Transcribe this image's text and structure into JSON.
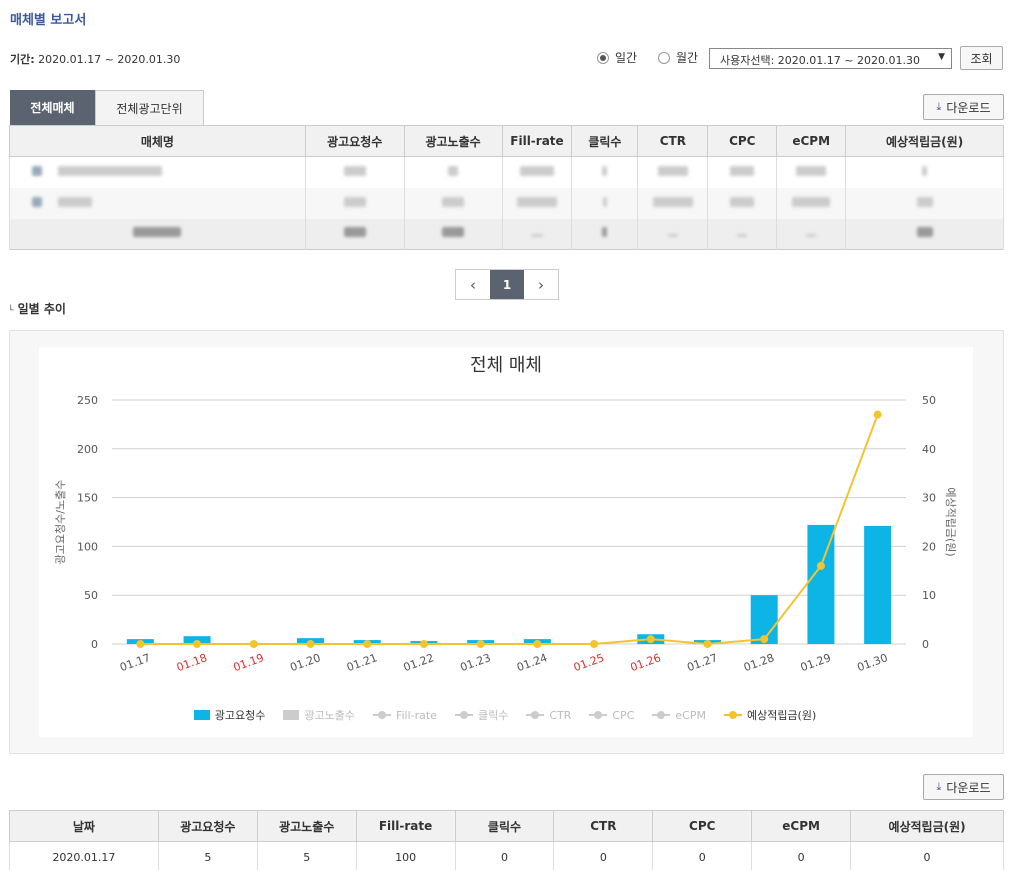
{
  "page": {
    "title": "매체별 보고서"
  },
  "period": {
    "label": "기간:",
    "value": "2020.01.17 ~ 2020.01.30"
  },
  "filter": {
    "daily_label": "일간",
    "monthly_label": "월간",
    "selected": "daily",
    "range_select": "사용자선택: 2020.01.17 ~ 2020.01.30",
    "query_button": "조회"
  },
  "tabs": [
    {
      "label": "전체매체",
      "active": true
    },
    {
      "label": "전체광고단위",
      "active": false
    }
  ],
  "download_label": "다운로드",
  "media_table": {
    "headers": [
      "매체명",
      "광고요청수",
      "광고노출수",
      "Fill-rate",
      "클릭수",
      "CTR",
      "CPC",
      "eCPM",
      "예상적립금(원)"
    ]
  },
  "pager": {
    "current": "1"
  },
  "daily_section": {
    "title": "일별 추이"
  },
  "chart_data": {
    "type": "bar",
    "title": "전체 매체",
    "categories": [
      "01.17",
      "01.18",
      "01.19",
      "01.20",
      "01.21",
      "01.22",
      "01.23",
      "01.24",
      "01.25",
      "01.26",
      "01.27",
      "01.28",
      "01.29",
      "01.30"
    ],
    "weekend_categories": [
      "01.18",
      "01.19",
      "01.25",
      "01.26"
    ],
    "series": [
      {
        "name": "광고요청수",
        "type": "bar",
        "axis": "left",
        "color": "#0db4e6",
        "values": [
          5,
          8,
          0,
          6,
          4,
          3,
          4,
          5,
          0,
          10,
          4,
          50,
          122,
          121
        ]
      },
      {
        "name": "예상적립금(원)",
        "type": "line",
        "axis": "right",
        "color": "#f4c430",
        "values": [
          0,
          0,
          0,
          0,
          0,
          0,
          0,
          0,
          0,
          1,
          0,
          1,
          16,
          47
        ]
      }
    ],
    "ylabel": "광고요청수/노출수",
    "y2label": "예상적립금(원)",
    "ylim": [
      0,
      250
    ],
    "y2lim": [
      0,
      50
    ],
    "yticks": [
      0,
      50,
      100,
      150,
      200,
      250
    ],
    "y2ticks": [
      0,
      10,
      20,
      30,
      40,
      50
    ],
    "grid": true,
    "legend_position": "bottom",
    "legend": [
      {
        "name": "광고요청수",
        "symbol": "bar",
        "active": true,
        "color": "#0db4e6"
      },
      {
        "name": "광고노출수",
        "symbol": "bar",
        "active": false,
        "color": "#cccccc"
      },
      {
        "name": "Fill-rate",
        "symbol": "line",
        "active": false,
        "color": "#cccccc"
      },
      {
        "name": "클릭수",
        "symbol": "line",
        "active": false,
        "color": "#cccccc"
      },
      {
        "name": "CTR",
        "symbol": "line",
        "active": false,
        "color": "#cccccc"
      },
      {
        "name": "CPC",
        "symbol": "line",
        "active": false,
        "color": "#cccccc"
      },
      {
        "name": "eCPM",
        "symbol": "line",
        "active": false,
        "color": "#cccccc"
      },
      {
        "name": "예상적립금(원)",
        "symbol": "line",
        "active": true,
        "color": "#f4c430"
      }
    ]
  },
  "daily_table": {
    "headers": [
      "날짜",
      "광고요청수",
      "광고노출수",
      "Fill-rate",
      "클릭수",
      "CTR",
      "CPC",
      "eCPM",
      "예상적립금(원)"
    ],
    "rows": [
      [
        "2020.01.17",
        "5",
        "5",
        "100",
        "0",
        "0",
        "0",
        "0",
        "0"
      ]
    ]
  }
}
